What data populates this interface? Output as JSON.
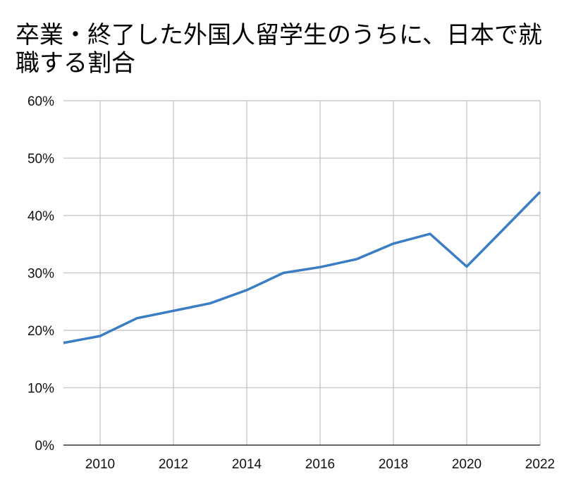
{
  "chart": {
    "title": "卒業・終了した外国人留学生のうちに、日本で就職する割合",
    "line_color": "#3b7dc4",
    "grid_color": "#cccccc",
    "axis_color": "#333333"
  },
  "chart_data": {
    "type": "line",
    "title": "卒業・終了した外国人留学生のうちに、日本で就職する割合",
    "xlabel": "",
    "ylabel": "",
    "x": [
      2009,
      2010,
      2011,
      2012,
      2013,
      2014,
      2015,
      2016,
      2017,
      2018,
      2019,
      2020,
      2021,
      2022
    ],
    "series": [
      {
        "name": "日本で就職する割合",
        "values": [
          17.8,
          19.0,
          22.1,
          23.4,
          24.7,
          27.0,
          30.0,
          31.0,
          32.4,
          35.1,
          36.8,
          31.1,
          37.6,
          44.1
        ],
        "unit": "%"
      }
    ],
    "xlim": [
      2009,
      2022
    ],
    "ylim": [
      0,
      60
    ],
    "x_ticks": [
      "2010",
      "2012",
      "2014",
      "2016",
      "2018",
      "2020",
      "2022"
    ],
    "y_ticks": [
      "0%",
      "10%",
      "20%",
      "30%",
      "40%",
      "50%",
      "60%"
    ],
    "grid": true,
    "legend": "none"
  }
}
